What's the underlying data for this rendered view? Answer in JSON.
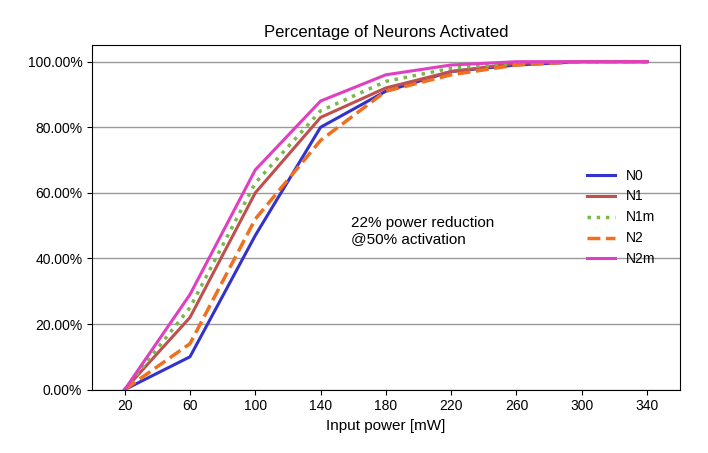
{
  "chart_data": {
    "type": "line",
    "title": "Percentage of Neurons Activated",
    "x_label": "Input power [mW]",
    "annotation": "22% power reduction\n@50% activation",
    "x": [
      20,
      60,
      100,
      140,
      180,
      220,
      260,
      300,
      340
    ],
    "xlim": [
      0,
      360
    ],
    "xticks": [
      20,
      60,
      100,
      140,
      180,
      220,
      260,
      300,
      340
    ],
    "ylim": [
      0,
      105
    ],
    "yticks": [
      {
        "value": 0,
        "label": "0.00%"
      },
      {
        "value": 20,
        "label": "20.00%"
      },
      {
        "value": 40,
        "label": "40.00%"
      },
      {
        "value": 60,
        "label": "60.00%"
      },
      {
        "value": 80,
        "label": "80.00%"
      },
      {
        "value": 100,
        "label": "100.00%"
      }
    ],
    "grid": true,
    "legend": "center right",
    "series": [
      {
        "name": "N0",
        "color": "#3333cc",
        "line_style": "solid",
        "values": [
          0,
          10,
          47,
          80,
          91,
          97,
          99,
          100,
          100
        ]
      },
      {
        "name": "N1",
        "color": "#c0504d",
        "line_style": "solid",
        "values": [
          0,
          22,
          60,
          83,
          92,
          97,
          99.5,
          100,
          100
        ]
      },
      {
        "name": "N1m",
        "color": "#77b94a",
        "line_style": "dotted",
        "values": [
          0,
          25,
          63,
          85,
          94,
          98,
          99.5,
          100,
          100
        ]
      },
      {
        "name": "N2",
        "color": "#f07020",
        "line_style": "dashed",
        "values": [
          0,
          14,
          52,
          76,
          91,
          96,
          99,
          100,
          100
        ]
      },
      {
        "name": "N2m",
        "color": "#e040c0",
        "line_style": "solid",
        "values": [
          0,
          29,
          67,
          88,
          96,
          99,
          100,
          100,
          100
        ]
      }
    ]
  }
}
